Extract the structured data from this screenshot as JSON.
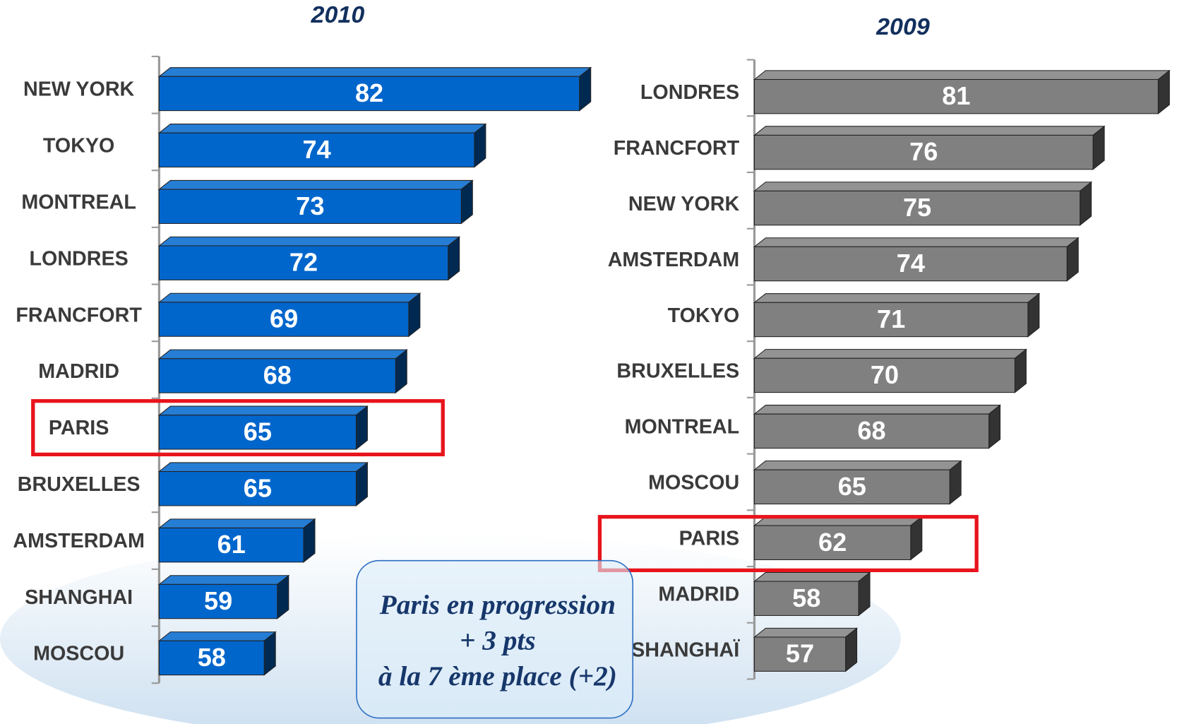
{
  "chart_data": [
    {
      "type": "bar",
      "orientation": "horizontal",
      "title": "2010",
      "categories": [
        "NEW YORK",
        "TOKYO",
        "MONTREAL",
        "LONDRES",
        "FRANCFORT",
        "MADRID",
        "PARIS",
        "BRUXELLES",
        "AMSTERDAM",
        "SHANGHAI",
        "MOSCOU"
      ],
      "values": [
        82,
        74,
        73,
        72,
        69,
        68,
        65,
        65,
        61,
        59,
        58
      ],
      "color": "#0066cc",
      "xlim": [
        50,
        84
      ]
    },
    {
      "type": "bar",
      "orientation": "horizontal",
      "title": "2009",
      "categories": [
        "LONDRES",
        "FRANCFORT",
        "NEW YORK",
        "AMSTERDAM",
        "TOKYO",
        "BRUXELLES",
        "MONTREAL",
        "MOSCOU",
        "PARIS",
        "MADRID",
        "SHANGHAÏ"
      ],
      "values": [
        81,
        76,
        75,
        74,
        71,
        70,
        68,
        65,
        62,
        58,
        57
      ],
      "color": "#808080",
      "xlim": [
        50,
        84
      ]
    }
  ],
  "annotation": [
    "Paris en progression",
    "+ 3 pts",
    "à la 7 ème place  (+2)"
  ]
}
